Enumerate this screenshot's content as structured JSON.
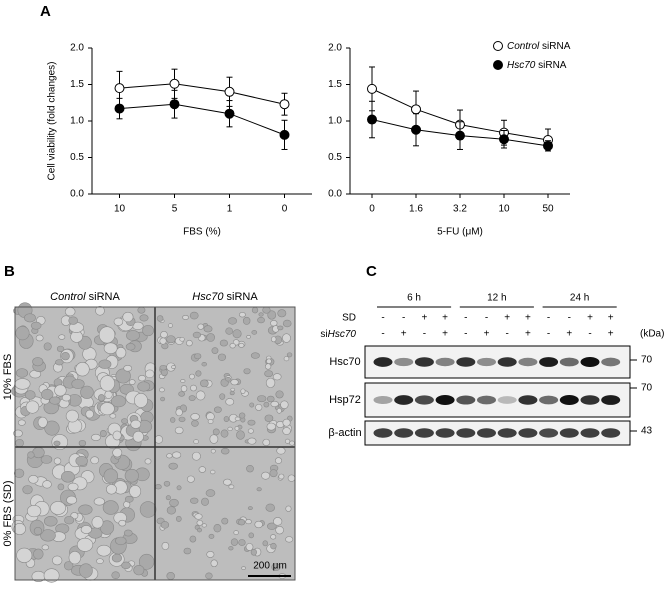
{
  "panel_labels": [
    "A",
    "B",
    "C"
  ],
  "chart_data": [
    {
      "type": "line",
      "ylabel": "Cell viability (fold changes)",
      "xlabel": "FBS (%)",
      "categories": [
        "10",
        "5",
        "1",
        "0"
      ],
      "ylim": [
        0,
        2
      ],
      "yticks": [
        {
          "value": 0,
          "label": "0.0"
        },
        0.5,
        {
          "value": 1,
          "label": "1.0"
        },
        1.5,
        {
          "value": 2,
          "label": "2.0"
        }
      ],
      "series": [
        {
          "name": "Control siRNA",
          "color": "#ffffff",
          "values": [
            1.45,
            1.51,
            1.4,
            1.23
          ],
          "errors": [
            0.23,
            0.2,
            0.2,
            0.15
          ]
        },
        {
          "name": "Hsc70 siRNA",
          "color": "#000000",
          "values": [
            1.17,
            1.23,
            1.1,
            0.81
          ],
          "errors": [
            0.14,
            0.19,
            0.18,
            0.2
          ]
        }
      ]
    },
    {
      "type": "line",
      "xlabel": "5-FU (μM)",
      "legend": "upper right",
      "categories": [
        "0",
        "1.6",
        "3.2",
        "10",
        "50"
      ],
      "ylim": [
        0,
        2
      ],
      "yticks": [
        {
          "value": 0,
          "label": "0.0"
        },
        0.5,
        {
          "value": 1,
          "label": "1.0"
        },
        1.5,
        {
          "value": 2,
          "label": "2.0"
        }
      ],
      "series": [
        {
          "name": "Control siRNA",
          "color": "#ffffff",
          "values": [
            1.44,
            1.16,
            0.95,
            0.84,
            0.74
          ],
          "errors": [
            0.3,
            0.25,
            0.2,
            0.17,
            0.15
          ]
        },
        {
          "name": "Hsc70 siRNA",
          "color": "#000000",
          "values": [
            1.02,
            0.88,
            0.8,
            0.75,
            0.66
          ],
          "errors": [
            0.25,
            0.22,
            0.19,
            0.12,
            0.07
          ]
        }
      ]
    }
  ],
  "panel_b": {
    "columns": [
      "Control siRNA",
      "Hsc70 siRNA"
    ],
    "rows": [
      "10% FBS",
      "0% FBS (SD)"
    ],
    "scale_bar": "200 μm"
  },
  "panel_c": {
    "times": [
      "6 h",
      "12 h",
      "24 h"
    ],
    "row_labels": [
      "SD",
      "siHsc70"
    ],
    "sd": [
      "-",
      "-",
      "+",
      "+",
      "-",
      "-",
      "+",
      "+",
      "-",
      "-",
      "+",
      "+"
    ],
    "si": [
      "-",
      "+",
      "-",
      "+",
      "-",
      "+",
      "-",
      "+",
      "-",
      "+",
      "-",
      "+"
    ],
    "unit": "(kDa)",
    "blots": [
      {
        "name": "Hsc70",
        "marker": "70"
      },
      {
        "name": "Hsp72",
        "marker": "70"
      },
      {
        "name": "β-actin",
        "marker": "43"
      }
    ]
  }
}
